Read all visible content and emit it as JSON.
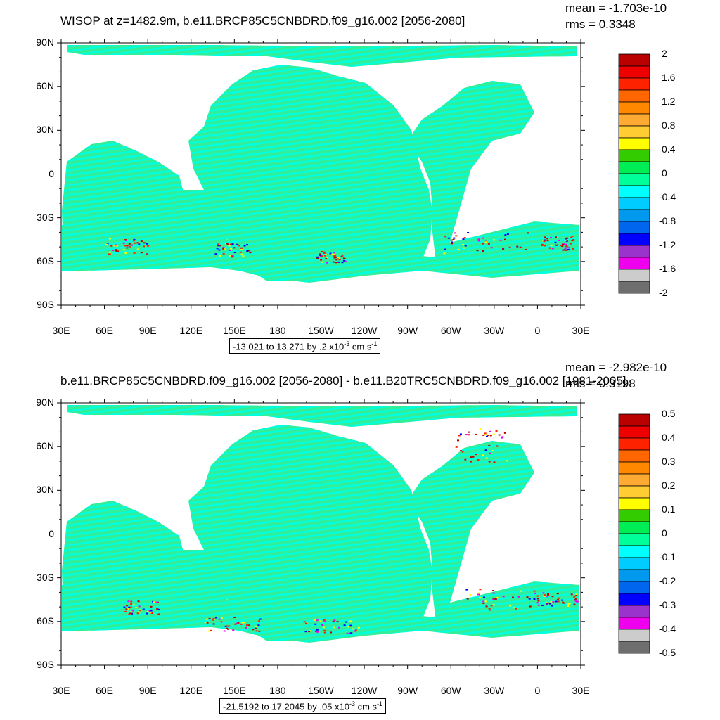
{
  "panels": [
    {
      "title": "WISOP at z=1482.9m, b.e11.BRCP85C5CNBDRD.f09_g16.002 [2056-2080]",
      "mean": "mean = -1.703e-10",
      "rms": "rms = 0.3348",
      "range_main": "-13.021 to 13.271 by .2 x10",
      "range_exp": "-3",
      "range_unit": " cm s",
      "range_unit_exp": "-1",
      "colorbar_labels": [
        "2",
        "1.6",
        "1.2",
        "0.8",
        "0.4",
        "0",
        "-0.4",
        "-0.8",
        "-1.2",
        "-1.6",
        "-2"
      ]
    },
    {
      "title": "b.e11.BRCP85C5CNBDRD.f09_g16.002 [2056-2080] - b.e11.B20TRC5CNBDRD.f09_g16.002 [1981-2005]",
      "mean": "mean = -2.982e-10",
      "rms": "rms = 0.3198",
      "range_main": "-21.5192 to 17.2045 by .05 x10",
      "range_exp": "-3",
      "range_unit": " cm s",
      "range_unit_exp": "-1",
      "colorbar_labels": [
        "0.5",
        "0.4",
        "0.3",
        "0.2",
        "0.1",
        "0",
        "-0.1",
        "-0.2",
        "-0.3",
        "-0.4",
        "-0.5"
      ]
    }
  ],
  "lat_labels": [
    "90N",
    "60N",
    "30N",
    "0",
    "30S",
    "60S",
    "90S"
  ],
  "lon_labels": [
    "30E",
    "60E",
    "90E",
    "120E",
    "150E",
    "180",
    "150W",
    "120W",
    "90W",
    "60W",
    "30W",
    "0",
    "30E"
  ],
  "colors": {
    "ocean_fill": "#33ee99",
    "ocean_band": "#00ffdd",
    "palette": [
      "#6e6e6e",
      "#cccccc",
      "#ee00ee",
      "#9933cc",
      "#0000ff",
      "#0066ee",
      "#0099ee",
      "#00ccff",
      "#00ffff",
      "#00ff99",
      "#00ee55",
      "#33cc00",
      "#ffff00",
      "#ffcc33",
      "#ffaa33",
      "#ff8800",
      "#ff6600",
      "#ff2200",
      "#ee0000",
      "#bb0000"
    ]
  }
}
